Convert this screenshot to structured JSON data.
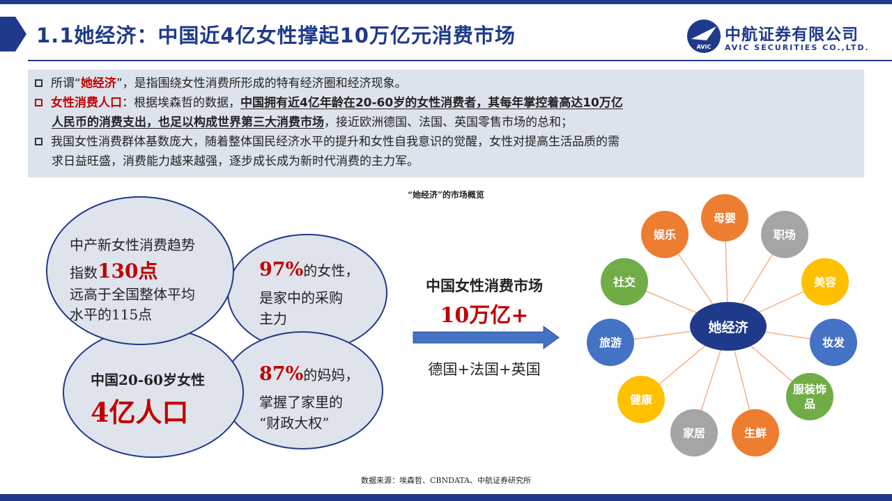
{
  "header": {
    "title": "1.1她经济：中国近4亿女性撑起10万亿元消费市场",
    "logo_name": "中航证券有限公司",
    "logo_en": "AVIC SECURITIES CO.,LTD.",
    "logo_badge": "AVIC"
  },
  "intro": {
    "line1_a": "所谓“",
    "line1_b": "她经济",
    "line1_c": "”，是指围绕女性消费所形成的特有经济圈和经济现象。",
    "line2_a": "女性消费人口",
    "line2_b": "：根据埃森哲的数据，",
    "line2_c": "中国拥有近4亿年龄在20-60岁的女性消费者，其每年掌控着高达10万亿",
    "line3_a": "人民币的消费支出，也足以构成世界第三大消费市场",
    "line3_b": "，接近欧洲德国、法国、英国零售市场的总和；",
    "line4": "我国女性消费群体基数庞大，随着整体国民经济水平的提升和女性自我意识的觉醒，女性对提高生活品质的需",
    "line5": "求日益旺盛，消费能力越来越强，逐步成长成为新时代消费的主力军。"
  },
  "overview": {
    "caption": "“她经济”的市场概览",
    "bubble1_l1": "中产新女性消费趋势",
    "bubble1_l2a": "指数",
    "bubble1_l2b": "130点",
    "bubble1_l3": "远高于全国整体平均",
    "bubble1_l4": "水平的115点",
    "bubble2_a": "97%",
    "bubble2_b": "的女性，",
    "bubble2_l2": "是家中的采购",
    "bubble2_l3": "主力",
    "bubble3_l1": "中国20-60岁女性",
    "bubble3_l2": "4亿人口",
    "bubble4_a": "87%",
    "bubble4_b": "的妈妈，",
    "bubble4_l2": "掌握了家里的",
    "bubble4_l3": "“财政大权”"
  },
  "market": {
    "title": "中国女性消费市场",
    "value": "10万亿+",
    "compare": "德国+法国+英国"
  },
  "network": {
    "center": "她经济",
    "nodes": [
      {
        "label": "母婴",
        "color": "#ed7d31"
      },
      {
        "label": "职场",
        "color": "#a5a5a5"
      },
      {
        "label": "美容",
        "color": "#ffc000"
      },
      {
        "label": "妆发",
        "color": "#4472c4"
      },
      {
        "label": "服装饰品",
        "color": "#70ad47"
      },
      {
        "label": "生鲜",
        "color": "#ed7d31"
      },
      {
        "label": "家居",
        "color": "#a5a5a5"
      },
      {
        "label": "健康",
        "color": "#ffc000"
      },
      {
        "label": "旅游",
        "color": "#4472c4"
      },
      {
        "label": "社交",
        "color": "#70ad47"
      },
      {
        "label": "娱乐",
        "color": "#ed7d31"
      }
    ]
  },
  "footer": {
    "source": "数据来源：埃森哲、CBNDATA、中航证券研究所"
  },
  "colors": {
    "brand": "#1f3a8a",
    "accent_red": "#c00000",
    "box_bg": "#dde3ec",
    "arrow": "#4472c4",
    "spoke": "#f4b183"
  }
}
